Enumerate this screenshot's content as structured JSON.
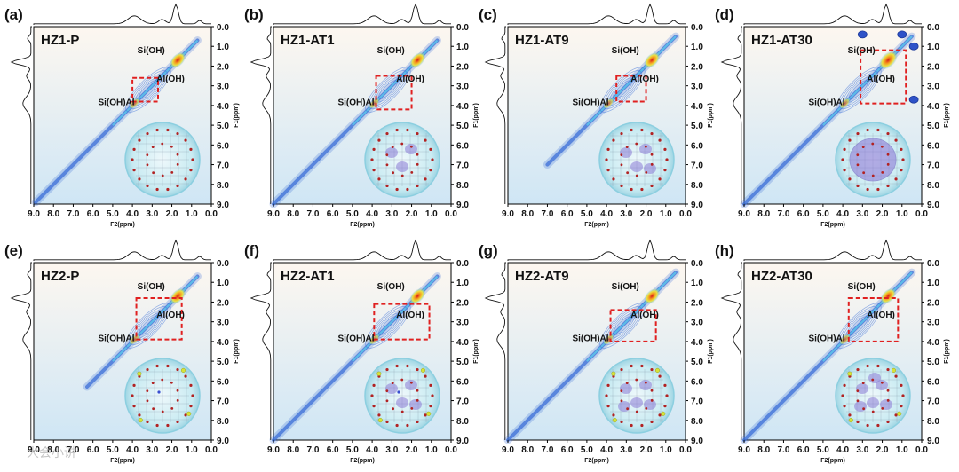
{
  "chart_data": [
    {
      "type": "heatmap",
      "letter": "(a)",
      "sample": "HZ1-P",
      "box": {
        "x": [
          2.7,
          4.0
        ],
        "y": [
          2.6,
          3.8
        ]
      },
      "pores": 0,
      "acid": false,
      "corners": false,
      "yellow": false,
      "big": false,
      "diag": [
        0.7,
        8.9
      ]
    },
    {
      "type": "heatmap",
      "letter": "(b)",
      "sample": "HZ1-AT1",
      "box": {
        "x": [
          2.0,
          3.8
        ],
        "y": [
          2.5,
          4.2
        ]
      },
      "pores": 3,
      "acid": false,
      "corners": false,
      "yellow": false,
      "big": false,
      "diag": [
        0.7,
        9.0
      ]
    },
    {
      "type": "heatmap",
      "letter": "(c)",
      "sample": "HZ1-AT9",
      "box": {
        "x": [
          2.0,
          3.5
        ],
        "y": [
          2.5,
          3.8
        ]
      },
      "pores": 4,
      "acid": false,
      "corners": false,
      "yellow": false,
      "big": false,
      "diag": [
        0.5,
        7.0
      ]
    },
    {
      "type": "heatmap",
      "letter": "(d)",
      "sample": "HZ1-AT30",
      "box": {
        "x": [
          0.8,
          3.1
        ],
        "y": [
          1.2,
          3.9
        ]
      },
      "pores": 0,
      "acid": false,
      "corners": true,
      "yellow": false,
      "big": true,
      "diag": [
        0.5,
        9.0
      ]
    },
    {
      "type": "heatmap",
      "letter": "(e)",
      "sample": "HZ2-P",
      "box": {
        "x": [
          1.5,
          3.8
        ],
        "y": [
          1.8,
          3.9
        ]
      },
      "pores": 0,
      "acid": true,
      "corners": false,
      "yellow": true,
      "big": false,
      "diag": [
        0.7,
        6.3
      ]
    },
    {
      "type": "heatmap",
      "letter": "(f)",
      "sample": "HZ2-AT1",
      "box": {
        "x": [
          1.1,
          3.9
        ],
        "y": [
          2.1,
          3.9
        ]
      },
      "pores": 4,
      "acid": true,
      "corners": false,
      "yellow": true,
      "big": false,
      "diag": [
        0.7,
        9.0
      ]
    },
    {
      "type": "heatmap",
      "letter": "(g)",
      "sample": "HZ2-AT9",
      "box": {
        "x": [
          1.5,
          3.8
        ],
        "y": [
          2.4,
          4.0
        ]
      },
      "pores": 5,
      "acid": false,
      "corners": false,
      "yellow": true,
      "big": false,
      "diag": [
        0.5,
        9.0
      ]
    },
    {
      "type": "heatmap",
      "letter": "(h)",
      "sample": "HZ2-AT30",
      "box": {
        "x": [
          1.2,
          3.7
        ],
        "y": [
          1.8,
          4.0
        ]
      },
      "pores": 6,
      "acid": false,
      "corners": false,
      "yellow": true,
      "big": false,
      "diag": [
        0.5,
        9.0
      ]
    }
  ],
  "axes": {
    "ticks": [
      9,
      8,
      7,
      6,
      5,
      4,
      3,
      2,
      1,
      0
    ],
    "tick_labels_x": [
      "9.0",
      "8.0",
      "7.0",
      "6.0",
      "5.0",
      "4.0",
      "3.0",
      "2.0",
      "1.0",
      "0.0"
    ],
    "tick_labels_y": [
      "0.0",
      "1.0",
      "2.0",
      "3.0",
      "4.0",
      "5.0",
      "6.0",
      "7.0",
      "8.0",
      "9.0"
    ],
    "xlabel": "F2(ppm)",
    "ylabel": "F1(ppm)",
    "range": [
      9,
      0
    ]
  },
  "peaks": {
    "si": "Si(OH)",
    "al": "Al(OH)",
    "bridge": "Si(OH)Al",
    "si_pos": [
      1.9,
      1.9
    ],
    "al_pos": [
      2.6,
      2.6
    ],
    "bridge_pos": [
      3.8,
      3.8
    ]
  },
  "colors": {
    "contour": "#3c6fd8",
    "hot": "#e03a1e",
    "box": "#e02020",
    "circle": "#a8dde8",
    "pore": "#8b7ad6",
    "atom": "#b22222",
    "yellow": "#d6e23a",
    "bg_top": "#fdf7f0",
    "bg_bottom": "#cfe6f5"
  },
  "watermark": "大会小讲"
}
